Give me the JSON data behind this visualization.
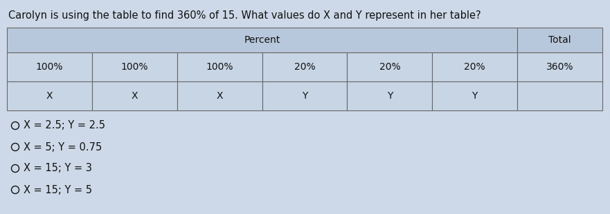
{
  "question": "Carolyn is using the table to find 360% of 15. What values do X and Y represent in her table?",
  "table_header_label": "Percent",
  "total_label": "Total",
  "total_value": "360%",
  "col_percents": [
    "100%",
    "100%",
    "100%",
    "20%",
    "20%",
    "20%"
  ],
  "col_values": [
    "X",
    "X",
    "X",
    "Y",
    "Y",
    "Y"
  ],
  "choices": [
    "X = 2.5; Y = 2.5",
    "X = 5; Y = 0.75",
    "X = 15; Y = 3",
    "X = 15; Y = 5"
  ],
  "bg_color": "#cdd9e8",
  "table_header_bg": "#b8c8dc",
  "table_body_bg": "#c8d5e5",
  "border_color": "#666666",
  "text_color": "#111111",
  "question_fontsize": 10.5,
  "table_fontsize": 10,
  "choice_fontsize": 10.5
}
